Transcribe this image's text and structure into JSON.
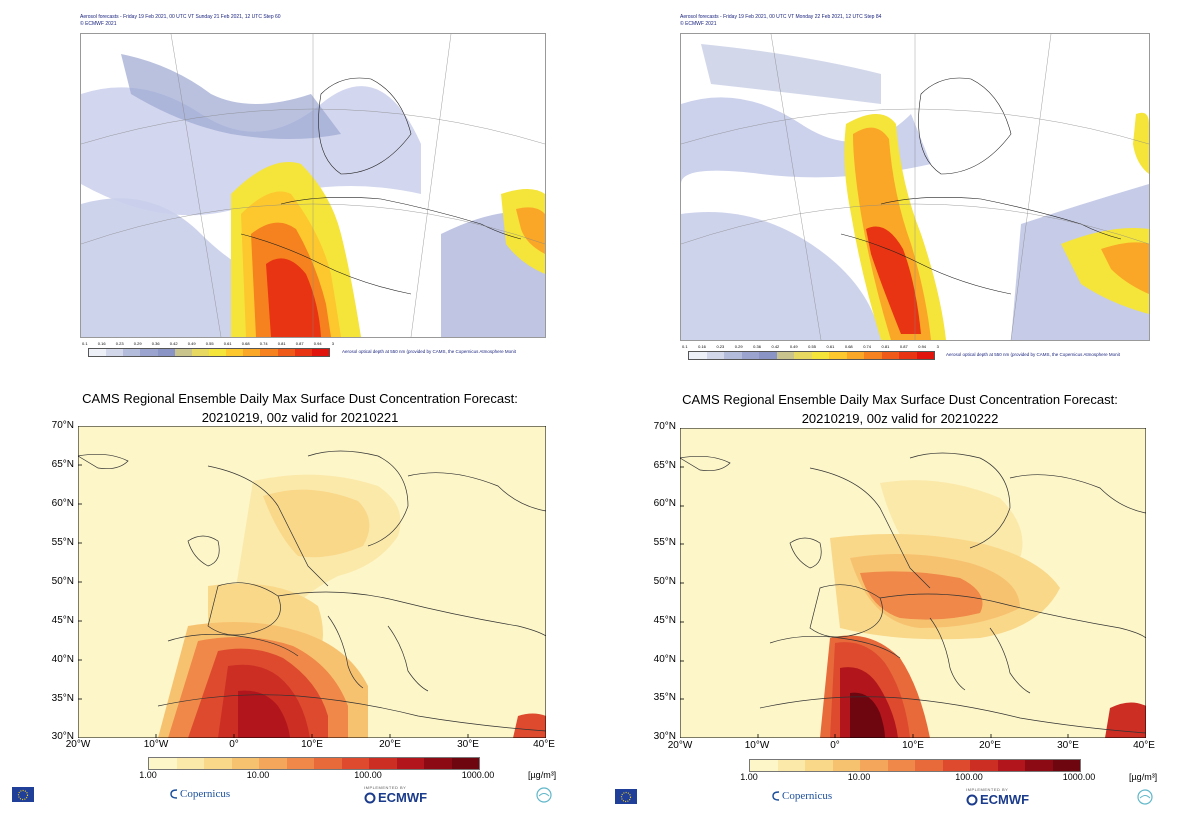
{
  "top_left": {
    "header_line1": "Aerosol forecasts - Friday 19 Feb 2021, 00 UTC VT Sunday 21 Feb 2021, 12 UTC Step 60",
    "header_line2": "© ECMWF 2021",
    "footer": "Aerosol optical depth at 550 nm (provided by CAMS, the Copernicus Atmosphere Monit"
  },
  "top_right": {
    "header_line1": "Aerosol forecasts - Friday 19 Feb 2021, 00 UTC VT Monday 22 Feb 2021, 12 UTC Step 84",
    "header_line2": "© ECMWF 2021",
    "footer": "Aerosol optical depth at 550 nm (provided by CAMS, the Copernicus Atmosphere Monit"
  },
  "aod_ticks": [
    "0.1",
    "0.16",
    "0.23",
    "0.29",
    "0.36",
    "0.42",
    "0.49",
    "0.55",
    "0.61",
    "0.68",
    "0.74",
    "0.81",
    "0.87",
    "0.94",
    "3"
  ],
  "aod_colors": [
    "#eef0f7",
    "#d2d7ea",
    "#b4bcdc",
    "#9aa4cf",
    "#8a95c6",
    "#c9c48e",
    "#e6d860",
    "#f5e43a",
    "#fcc82e",
    "#faa626",
    "#f5821e",
    "#ef5a18",
    "#e83412",
    "#e0140c"
  ],
  "bottom_left": {
    "title_line1": "CAMS Regional Ensemble Daily Max Surface Dust Concentration Forecast:",
    "title_line2": "20210219, 00z valid for 20210221"
  },
  "bottom_right": {
    "title_line1": "CAMS Regional Ensemble Daily Max Surface Dust Concentration Forecast:",
    "title_line2": "20210219, 00z valid for 20210222"
  },
  "lat_labels": [
    "70°N",
    "65°N",
    "60°N",
    "55°N",
    "50°N",
    "45°N",
    "40°N",
    "35°N",
    "30°N"
  ],
  "lon_labels": [
    "20°W",
    "10°W",
    "0°",
    "10°E",
    "20°E",
    "30°E",
    "40°E"
  ],
  "dust_ticks": [
    "1.00",
    "10.00",
    "100.00",
    "1000.00"
  ],
  "dust_unit": "[µg/m³]",
  "dust_colors": [
    "#fdf6c8",
    "#fbe9aa",
    "#f9d88a",
    "#f7c270",
    "#f4a65a",
    "#ef8848",
    "#e8693a",
    "#dd4a2e",
    "#cc2e24",
    "#b2161c",
    "#8c0a14",
    "#6e0610"
  ],
  "logos": {
    "copernicus": "Copernicus",
    "ecmwf_implemented": "IMPLEMENTED BY",
    "ecmwf": "ECMWF"
  }
}
